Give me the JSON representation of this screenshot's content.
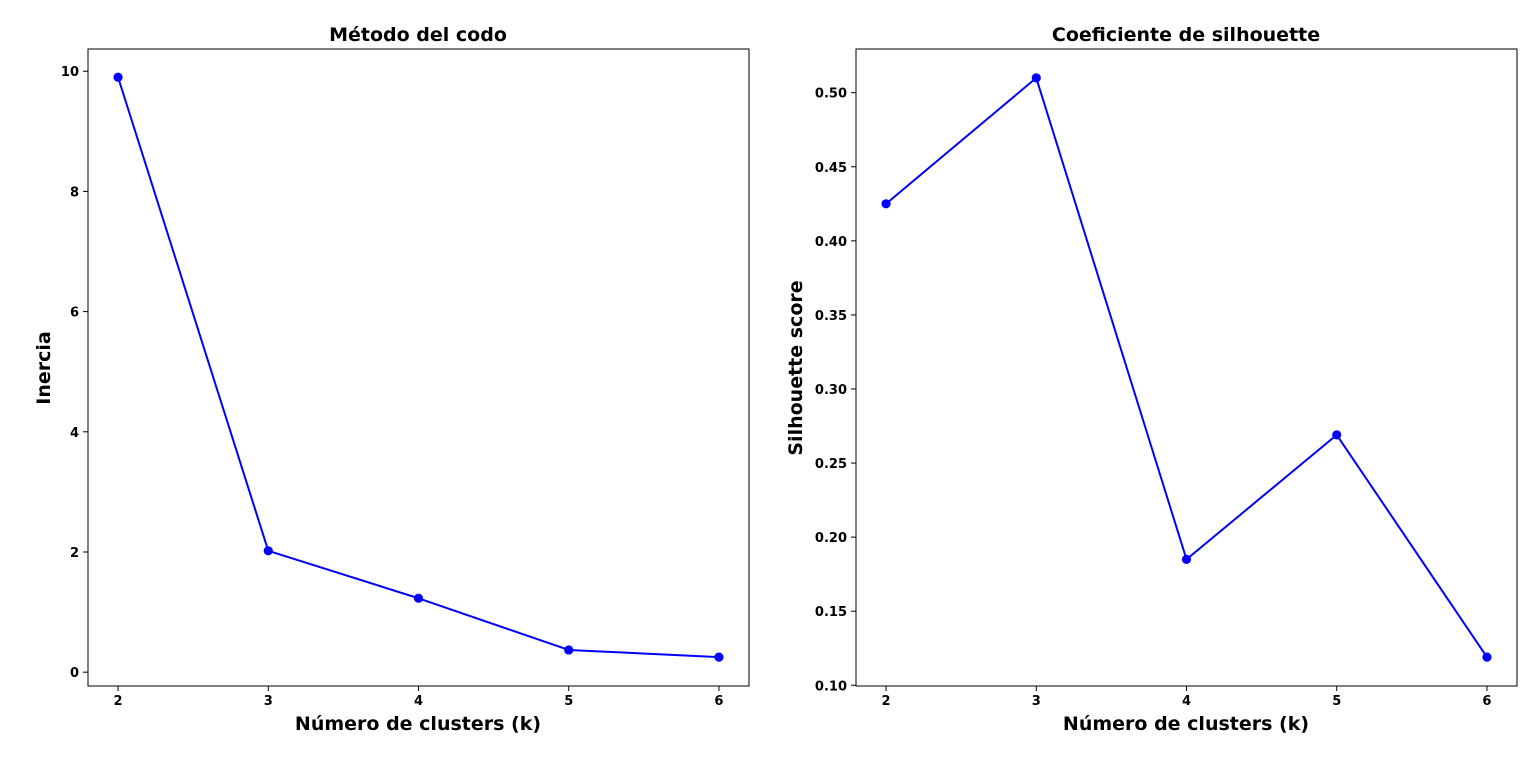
{
  "chart_data": [
    {
      "type": "line",
      "title": "Método del codo",
      "xlabel": "Número de clusters (k)",
      "ylabel": "Inercia",
      "x": [
        2,
        3,
        4,
        5,
        6
      ],
      "series": [
        {
          "values": [
            9.9,
            2.02,
            1.23,
            0.37,
            0.25
          ],
          "color": "#0000ff",
          "marker": "circle"
        }
      ],
      "xticks": [
        2,
        3,
        4,
        5,
        6
      ],
      "yticks": [
        0,
        2,
        4,
        6,
        8,
        10
      ],
      "xlim": [
        1.8,
        6.2
      ],
      "ylim": [
        -0.23,
        10.37
      ],
      "grid": false
    },
    {
      "type": "line",
      "title": "Coeficiente de silhouette",
      "xlabel": "Número de clusters (k)",
      "ylabel": "Silhouette score",
      "x": [
        2,
        3,
        4,
        5,
        6
      ],
      "series": [
        {
          "values": [
            0.425,
            0.51,
            0.185,
            0.269,
            0.119
          ],
          "color": "#0000ff",
          "marker": "circle"
        }
      ],
      "xticks": [
        2,
        3,
        4,
        5,
        6
      ],
      "yticks": [
        0.1,
        0.15,
        0.2,
        0.25,
        0.3,
        0.35,
        0.4,
        0.45,
        0.5
      ],
      "ytick_labels": [
        "0.10",
        "0.15",
        "0.20",
        "0.25",
        "0.30",
        "0.35",
        "0.40",
        "0.45",
        "0.50"
      ],
      "xlim": [
        1.8,
        6.2
      ],
      "ylim": [
        0.0995,
        0.5295
      ],
      "grid": false
    }
  ]
}
